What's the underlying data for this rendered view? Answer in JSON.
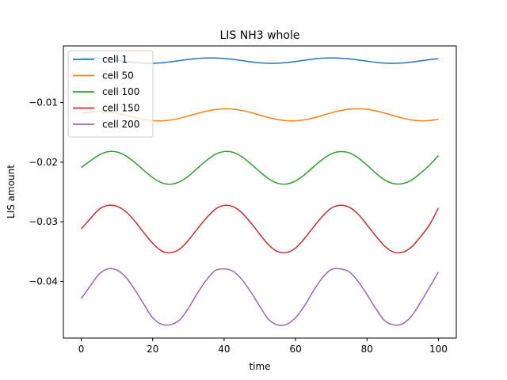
{
  "chart_data": {
    "type": "line",
    "title": "LIS NH3 whole",
    "xlabel": "time",
    "ylabel": "LIS amount",
    "xlim": [
      -5,
      105
    ],
    "ylim": [
      -0.0495,
      -0.0005
    ],
    "xticks": [
      0,
      20,
      40,
      60,
      80,
      100
    ],
    "yticks": [
      -0.04,
      -0.03,
      -0.02,
      -0.01
    ],
    "grid": false,
    "legend_position": "top-left",
    "series": [
      {
        "name": "cell 1",
        "color": "#1f77b4",
        "x": [
          0,
          2.5,
          5,
          7.5,
          10,
          12.5,
          15,
          17.5,
          20,
          22.5,
          25,
          27.5,
          30,
          32.5,
          35,
          37.5,
          40,
          42.5,
          45,
          47.5,
          50,
          52.5,
          55,
          57.5,
          60,
          62.5,
          65,
          67.5,
          70,
          72.5,
          75,
          77.5,
          80,
          82.5,
          85,
          87.5,
          90,
          92.5,
          95,
          97.5,
          100
        ],
        "y": [
          -0.00255,
          -0.00251,
          -0.00256,
          -0.0027,
          -0.0029,
          -0.00311,
          -0.00329,
          -0.0034,
          -0.00342,
          -0.00334,
          -0.00317,
          -0.00296,
          -0.00276,
          -0.00261,
          -0.00252,
          -0.00252,
          -0.00261,
          -0.00276,
          -0.00296,
          -0.00317,
          -0.00334,
          -0.00342,
          -0.0034,
          -0.00329,
          -0.00311,
          -0.0029,
          -0.0027,
          -0.00256,
          -0.00251,
          -0.00255,
          -0.00267,
          -0.00285,
          -0.00306,
          -0.00325,
          -0.00338,
          -0.00342,
          -0.00336,
          -0.00321,
          -0.00301,
          -0.0028,
          -0.00263
        ]
      },
      {
        "name": "cell 50",
        "color": "#ff7f0e",
        "x": [
          0,
          2.5,
          5,
          7.5,
          10,
          12.5,
          15,
          17.5,
          20,
          22.5,
          25,
          27.5,
          30,
          32.5,
          35,
          37.5,
          40,
          42.5,
          45,
          47.5,
          50,
          52.5,
          55,
          57.5,
          60,
          62.5,
          65,
          67.5,
          70,
          72.5,
          75,
          77.5,
          80,
          82.5,
          85,
          87.5,
          90,
          92.5,
          95,
          97.5,
          100
        ],
        "y": [
          -0.0118,
          -0.01157,
          -0.01149,
          -0.01157,
          -0.0118,
          -0.01213,
          -0.0125,
          -0.01283,
          -0.01303,
          -0.01306,
          -0.01293,
          -0.01264,
          -0.01225,
          -0.01183,
          -0.01145,
          -0.01118,
          -0.01105,
          -0.0111,
          -0.01133,
          -0.01167,
          -0.0121,
          -0.01253,
          -0.01285,
          -0.01305,
          -0.01306,
          -0.0129,
          -0.01258,
          -0.01217,
          -0.01173,
          -0.01136,
          -0.01111,
          -0.01104,
          -0.01113,
          -0.0114,
          -0.01177,
          -0.0122,
          -0.01261,
          -0.01292,
          -0.01306,
          -0.01302,
          -0.0128
        ]
      },
      {
        "name": "cell 100",
        "color": "#2ca02c",
        "x": [
          0,
          2.5,
          5,
          7.5,
          10,
          12.5,
          15,
          17.5,
          20,
          22.5,
          25,
          27.5,
          30,
          32.5,
          35,
          37.5,
          40,
          42.5,
          45,
          47.5,
          50,
          52.5,
          55,
          57.5,
          60,
          62.5,
          65,
          67.5,
          70,
          72.5,
          75,
          77.5,
          80,
          82.5,
          85,
          87.5,
          90,
          92.5,
          95,
          97.5,
          100
        ],
        "y": [
          -0.0209,
          -0.0198,
          -0.0188,
          -0.01825,
          -0.0183,
          -0.01895,
          -0.02005,
          -0.02135,
          -0.0226,
          -0.02345,
          -0.0237,
          -0.0233,
          -0.02235,
          -0.02105,
          -0.01975,
          -0.0187,
          -0.01822,
          -0.01835,
          -0.0191,
          -0.0203,
          -0.0216,
          -0.0228,
          -0.02355,
          -0.02365,
          -0.02315,
          -0.0221,
          -0.0208,
          -0.01955,
          -0.0186,
          -0.01823,
          -0.01842,
          -0.01925,
          -0.0205,
          -0.02185,
          -0.023,
          -0.0236,
          -0.0236,
          -0.023,
          -0.02185,
          -0.0205,
          -0.0189
        ]
      },
      {
        "name": "cell 150",
        "color": "#d62728",
        "x": [
          0,
          2.5,
          5,
          7.5,
          10,
          12.5,
          15,
          17.5,
          20,
          22.5,
          25,
          27.5,
          30,
          32.5,
          35,
          37.5,
          40,
          42.5,
          45,
          47.5,
          50,
          52.5,
          55,
          57.5,
          60,
          62.5,
          65,
          67.5,
          70,
          72.5,
          75,
          77.5,
          80,
          82.5,
          85,
          87.5,
          90,
          92.5,
          95,
          97.5,
          100
        ],
        "y": [
          -0.0312,
          -0.0295,
          -0.0279,
          -0.02725,
          -0.0274,
          -0.0283,
          -0.0299,
          -0.0318,
          -0.0336,
          -0.0349,
          -0.0352,
          -0.0346,
          -0.0331,
          -0.0312,
          -0.0294,
          -0.0279,
          -0.02725,
          -0.02745,
          -0.0285,
          -0.0302,
          -0.0321,
          -0.0339,
          -0.035,
          -0.03515,
          -0.0344,
          -0.0328,
          -0.0309,
          -0.0291,
          -0.0277,
          -0.02722,
          -0.02755,
          -0.0287,
          -0.0305,
          -0.0324,
          -0.0341,
          -0.0351,
          -0.0351,
          -0.0342,
          -0.0325,
          -0.0305,
          -0.0277
        ]
      },
      {
        "name": "cell 200",
        "color": "#9467bd",
        "x": [
          0,
          2.5,
          5,
          7.5,
          10,
          12.5,
          15,
          17.5,
          20,
          22.5,
          25,
          27.5,
          30,
          32.5,
          35,
          37.5,
          40,
          42.5,
          45,
          47.5,
          50,
          52.5,
          55,
          57.5,
          60,
          62.5,
          65,
          67.5,
          70,
          72.5,
          75,
          77.5,
          80,
          82.5,
          85,
          87.5,
          90,
          92.5,
          95,
          97.5,
          100
        ],
        "y": [
          -0.0429,
          -0.0408,
          -0.0388,
          -0.0379,
          -0.0381,
          -0.0393,
          -0.0414,
          -0.0438,
          -0.0461,
          -0.0472,
          -0.04725,
          -0.0465,
          -0.0445,
          -0.042,
          -0.0398,
          -0.0382,
          -0.0379,
          -0.0383,
          -0.0397,
          -0.0418,
          -0.0442,
          -0.0464,
          -0.0473,
          -0.0472,
          -0.0461,
          -0.0441,
          -0.0416,
          -0.0394,
          -0.038,
          -0.0379,
          -0.0384,
          -0.04,
          -0.0422,
          -0.0446,
          -0.0466,
          -0.0473,
          -0.0471,
          -0.0458,
          -0.0435,
          -0.041,
          -0.0384
        ]
      }
    ]
  }
}
